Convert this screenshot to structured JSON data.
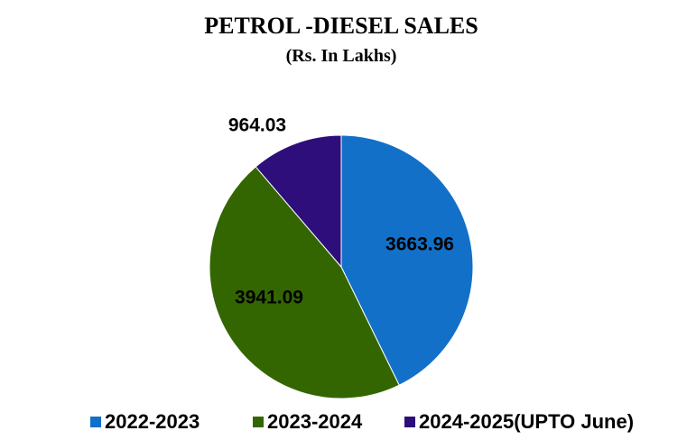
{
  "chart_data": {
    "type": "pie",
    "title": "PETROL -DIESEL SALES",
    "subtitle": "(Rs.  In Lakhs)",
    "categories": [
      "2022-2023",
      "2023-2024",
      "2024-2025(UPTO June)"
    ],
    "values": [
      3663.96,
      3941.09,
      964.03
    ],
    "colors": [
      "#1270c8",
      "#336600",
      "#2e0e7a"
    ],
    "legend": "bottom"
  }
}
